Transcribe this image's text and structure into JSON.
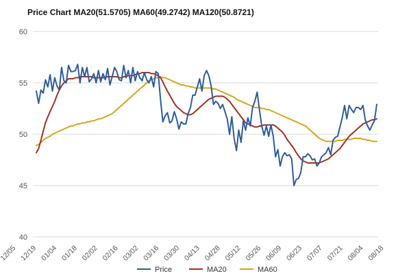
{
  "chart_data": {
    "type": "line",
    "title": "Price Chart MA20(51.5705) MA60(49.2742) MA120(50.8721)",
    "xlabel": "",
    "ylabel": "",
    "ylim": [
      40,
      60
    ],
    "yticks": [
      "60",
      "55",
      "50",
      "45",
      "40"
    ],
    "x_tick_labels": [
      "12/05",
      "12/19",
      "01/04",
      "01/18",
      "02/02",
      "02/16",
      "03/02",
      "03/16",
      "03/30",
      "04/13",
      "04/28",
      "05/12",
      "05/26",
      "06/09",
      "06/23",
      "07/07",
      "07/21",
      "08/04",
      "08/18"
    ],
    "grid": "horizontal",
    "legend_position": "bottom",
    "colors": {
      "Price": "#2e5b9a",
      "MA20": "#a0301f",
      "MA60": "#d4a418",
      "grid": "#d9d9d9"
    },
    "series": [
      {
        "name": "Price",
        "values": [
          54.2,
          53.0,
          54.3,
          54.0,
          55.3,
          54.6,
          55.8,
          54.2,
          55.5,
          54.7,
          54.3,
          56.5,
          55.2,
          55.0,
          56.7,
          56.1,
          56.1,
          56.2,
          56.8,
          55.0,
          56.5,
          55.6,
          56.5,
          55.1,
          55.4,
          55.9,
          55.0,
          56.2,
          55.1,
          55.9,
          55.3,
          56.4,
          54.8,
          55.6,
          56.5,
          56.1,
          55.3,
          55.2,
          56.7,
          55.5,
          56.2,
          55.0,
          56.5,
          55.2,
          56.1,
          55.5,
          55.2,
          56.0,
          55.3,
          55.0,
          55.6,
          54.6,
          56.1,
          55.9,
          53.4,
          51.2,
          51.8,
          52.1,
          51.1,
          51.3,
          52.2,
          51.5,
          50.5,
          51.2,
          51.0,
          51.0,
          52.0,
          52.6,
          53.8,
          53.8,
          54.6,
          55.4,
          54.2,
          55.7,
          56.2,
          55.7,
          54.7,
          52.9,
          53.2,
          53.0,
          52.5,
          52.9,
          52.2,
          51.5,
          50.0,
          51.7,
          49.6,
          48.4,
          50.4,
          49.2,
          51.3,
          50.4,
          51.6,
          50.8,
          52.6,
          53.2,
          54.1,
          52.4,
          50.8,
          49.9,
          50.8,
          49.8,
          50.9,
          49.8,
          47.8,
          48.5,
          46.9,
          47.8,
          48.2,
          47.9,
          48.0,
          47.6,
          45.0,
          45.6,
          45.7,
          46.3,
          47.8,
          47.8,
          48.1,
          47.9,
          47.5,
          47.6,
          46.9,
          47.2,
          47.8,
          48.0,
          48.2,
          48.7,
          48.0,
          49.4,
          49.7,
          49.8,
          50.7,
          51.6,
          52.8,
          51.5,
          52.8,
          52.4,
          52.1,
          52.6,
          52.6,
          52.4,
          52.8,
          51.4,
          50.8,
          50.4,
          50.9,
          51.3,
          52.9
        ]
      },
      {
        "name": "MA20",
        "values": [
          48.2,
          48.6,
          49.4,
          50.3,
          51.1,
          51.7,
          52.2,
          52.7,
          53.2,
          53.8,
          54.3,
          54.7,
          55.0,
          55.2,
          55.4,
          55.4,
          55.4,
          55.5,
          55.5,
          55.6,
          55.6,
          55.6,
          55.6,
          55.6,
          55.6,
          55.5,
          55.5,
          55.5,
          55.5,
          55.5,
          55.5,
          55.6,
          55.6,
          55.6,
          55.6,
          55.6,
          55.5,
          55.5,
          55.6,
          55.6,
          55.7,
          55.7,
          55.7,
          55.8,
          55.9,
          55.9,
          56.0,
          56.0,
          56.0,
          56.0,
          55.9,
          55.9,
          55.8,
          55.7,
          55.5,
          55.1,
          54.6,
          54.2,
          53.8,
          53.4,
          53.0,
          52.7,
          52.5,
          52.3,
          52.1,
          52.0,
          51.9,
          51.9,
          52.0,
          52.2,
          52.4,
          52.6,
          52.8,
          53.0,
          53.2,
          53.4,
          53.5,
          53.6,
          53.7,
          53.7,
          53.7,
          53.7,
          53.6,
          53.4,
          53.2,
          52.9,
          52.6,
          52.3,
          52.0,
          51.7,
          51.4,
          51.1,
          51.0,
          50.9,
          50.8,
          50.7,
          50.7,
          50.8,
          50.8,
          50.9,
          50.9,
          50.9,
          50.9,
          50.9,
          50.8,
          50.6,
          50.4,
          50.2,
          49.9,
          49.5,
          49.2,
          48.9,
          48.6,
          48.2,
          47.9,
          47.6,
          47.4,
          47.3,
          47.2,
          47.2,
          47.2,
          47.2,
          47.2,
          47.2,
          47.3,
          47.4,
          47.5,
          47.6,
          47.8,
          48.0,
          48.2,
          48.4,
          48.6,
          48.9,
          49.2,
          49.5,
          49.8,
          50.0,
          50.2,
          50.4,
          50.6,
          50.8,
          51.0,
          51.1,
          51.2,
          51.3,
          51.4,
          51.4,
          51.5
        ]
      },
      {
        "name": "MA60",
        "values": [
          48.9,
          49.0,
          49.2,
          49.4,
          49.6,
          49.7,
          49.8,
          50.0,
          50.1,
          50.2,
          50.3,
          50.4,
          50.5,
          50.6,
          50.7,
          50.8,
          50.8,
          50.9,
          51.0,
          51.0,
          51.1,
          51.1,
          51.2,
          51.2,
          51.3,
          51.3,
          51.4,
          51.5,
          51.5,
          51.6,
          51.7,
          51.8,
          51.9,
          52.0,
          52.2,
          52.4,
          52.6,
          52.8,
          53.0,
          53.2,
          53.4,
          53.6,
          53.8,
          54.0,
          54.2,
          54.4,
          54.6,
          54.8,
          55.0,
          55.2,
          55.3,
          55.4,
          55.5,
          55.5,
          55.6,
          55.5,
          55.5,
          55.4,
          55.3,
          55.2,
          55.1,
          55.0,
          54.9,
          54.8,
          54.8,
          54.7,
          54.7,
          54.6,
          54.6,
          54.5,
          54.5,
          54.5,
          54.5,
          54.5,
          54.5,
          54.5,
          54.5,
          54.4,
          54.4,
          54.3,
          54.2,
          54.1,
          54.0,
          53.9,
          53.8,
          53.7,
          53.6,
          53.4,
          53.3,
          53.2,
          53.1,
          53.0,
          52.9,
          52.8,
          52.7,
          52.6,
          52.6,
          52.6,
          52.5,
          52.5,
          52.4,
          52.4,
          52.3,
          52.2,
          52.1,
          52.0,
          51.9,
          51.8,
          51.7,
          51.6,
          51.5,
          51.4,
          51.3,
          51.2,
          51.1,
          51.0,
          50.9,
          50.8,
          50.6,
          50.4,
          50.2,
          50.0,
          49.8,
          49.6,
          49.5,
          49.4,
          49.3,
          49.3,
          49.3,
          49.3,
          49.3,
          49.4,
          49.4,
          49.4,
          49.5,
          49.5,
          49.5,
          49.5,
          49.6,
          49.6,
          49.6,
          49.6,
          49.5,
          49.5,
          49.4,
          49.4,
          49.3,
          49.3,
          49.3
        ]
      }
    ]
  }
}
